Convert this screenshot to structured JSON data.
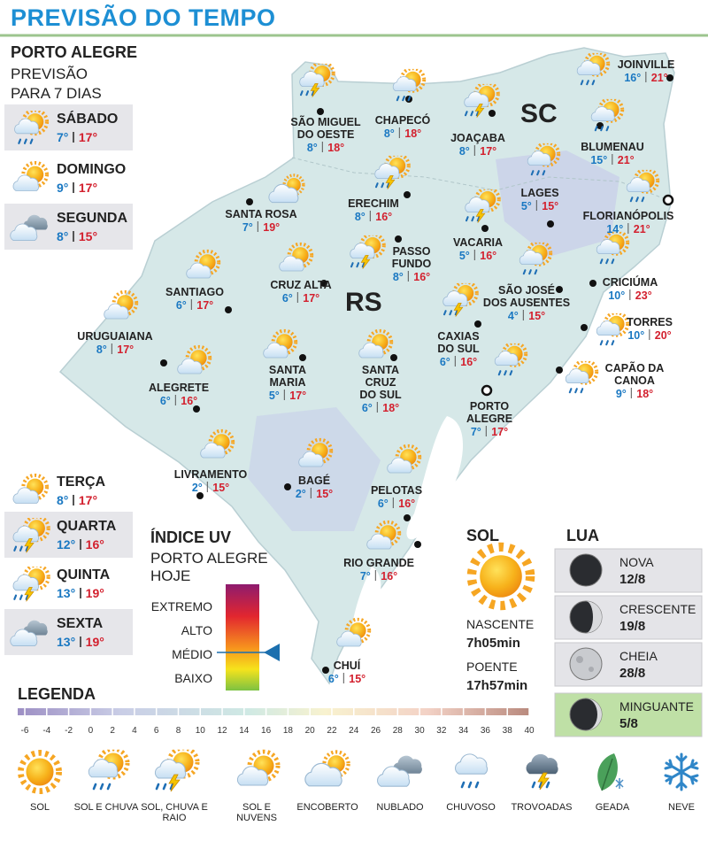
{
  "header": {
    "title": "PREVISÃO DO TEMPO"
  },
  "forecast": {
    "city": "PORTO ALEGRE",
    "subtitle": [
      "PREVISÃO",
      "PARA 7 DIAS"
    ],
    "days": [
      {
        "name": "SÁBADO",
        "min": "7°",
        "max": "17°"
      },
      {
        "name": "DOMINGO",
        "min": "9°",
        "max": "17°"
      },
      {
        "name": "SEGUNDA",
        "min": "8°",
        "max": "15°"
      },
      {
        "name": "TERÇA",
        "min": "8°",
        "max": "17°"
      },
      {
        "name": "QUARTA",
        "min": "12°",
        "max": "16°"
      },
      {
        "name": "QUINTA",
        "min": "13°",
        "max": "19°"
      },
      {
        "name": "SEXTA",
        "min": "13°",
        "max": "19°"
      }
    ]
  },
  "map": {
    "states": [
      "SC",
      "RS"
    ],
    "cities": [
      {
        "name": [
          "SÃO MIGUEL",
          "DO OESTE"
        ],
        "min": "8°",
        "max": "18°"
      },
      {
        "name": [
          "CHAPECÓ"
        ],
        "min": "8°",
        "max": "18°"
      },
      {
        "name": [
          "JOAÇABA"
        ],
        "min": "8°",
        "max": "17°"
      },
      {
        "name": [
          "JOINVILLE"
        ],
        "min": "16°",
        "max": "21°"
      },
      {
        "name": [
          "BLUMENAU"
        ],
        "min": "15°",
        "max": "21°"
      },
      {
        "name": [
          "LAGES"
        ],
        "min": "5°",
        "max": "15°"
      },
      {
        "name": [
          "FLORIANÓPOLIS"
        ],
        "min": "14°",
        "max": "21°"
      },
      {
        "name": [
          "SANTA ROSA"
        ],
        "min": "7°",
        "max": "19°"
      },
      {
        "name": [
          "ERECHIM"
        ],
        "min": "8°",
        "max": "16°"
      },
      {
        "name": [
          "VACARIA"
        ],
        "min": "5°",
        "max": "16°"
      },
      {
        "name": [
          "CRICIÚMA"
        ],
        "min": "10°",
        "max": "23°"
      },
      {
        "name": [
          "PASSO",
          "FUNDO"
        ],
        "min": "8°",
        "max": "16°"
      },
      {
        "name": [
          "SÃO JOSÉ",
          "DOS AUSENTES"
        ],
        "min": "4°",
        "max": "15°"
      },
      {
        "name": [
          "SANTIAGO"
        ],
        "min": "6°",
        "max": "17°"
      },
      {
        "name": [
          "CRUZ ALTA"
        ],
        "min": "6°",
        "max": "17°"
      },
      {
        "name": [
          "CAXIAS",
          "DO SUL"
        ],
        "min": "6°",
        "max": "16°"
      },
      {
        "name": [
          "TORRES"
        ],
        "min": "10°",
        "max": "20°"
      },
      {
        "name": [
          "URUGUAIANA"
        ],
        "min": "8°",
        "max": "17°"
      },
      {
        "name": [
          "SANTA",
          "MARIA"
        ],
        "min": "5°",
        "max": "17°"
      },
      {
        "name": [
          "SANTA",
          "CRUZ",
          "DO SUL"
        ],
        "min": "6°",
        "max": "18°"
      },
      {
        "name": [
          "ALEGRETE"
        ],
        "min": "6°",
        "max": "16°"
      },
      {
        "name": [
          "CAPÃO DA",
          "CANOA"
        ],
        "min": "9°",
        "max": "18°"
      },
      {
        "name": [
          "PORTO",
          "ALEGRE"
        ],
        "min": "7°",
        "max": "17°"
      },
      {
        "name": [
          "LIVRAMENTO"
        ],
        "min": "2°",
        "max": "15°"
      },
      {
        "name": [
          "BAGÉ"
        ],
        "min": "2°",
        "max": "15°"
      },
      {
        "name": [
          "PELOTAS"
        ],
        "min": "6°",
        "max": "16°"
      },
      {
        "name": [
          "RIO GRANDE"
        ],
        "min": "7°",
        "max": "16°"
      },
      {
        "name": [
          "CHUÍ"
        ],
        "min": "6°",
        "max": "15°"
      }
    ]
  },
  "uv": {
    "title": "ÍNDICE UV",
    "subtitle": [
      "PORTO ALEGRE",
      "HOJE"
    ],
    "levels": [
      "EXTREMO",
      "ALTO",
      "MÉDIO",
      "BAIXO"
    ]
  },
  "sun": {
    "title": "SOL",
    "sunrise_label": "NASCENTE",
    "sunrise": "7h05min",
    "sunset_label": "POENTE",
    "sunset": "17h57min"
  },
  "moon": {
    "title": "LUA",
    "phases": [
      {
        "name": "NOVA",
        "date": "12/8"
      },
      {
        "name": "CRESCENTE",
        "date": "19/8"
      },
      {
        "name": "CHEIA",
        "date": "28/8"
      },
      {
        "name": "MINGUANTE",
        "date": "5/8"
      }
    ]
  },
  "legend": {
    "title": "LEGENDA",
    "scale": [
      -6,
      -4,
      -2,
      0,
      2,
      4,
      6,
      8,
      10,
      12,
      14,
      16,
      18,
      20,
      22,
      24,
      26,
      28,
      30,
      32,
      34,
      36,
      38,
      40
    ],
    "icons": [
      "SOL",
      "SOL E CHUVA",
      "SOL, CHUVA E RAIO",
      "SOL E NUVENS",
      "ENCOBERTO",
      "NUBLADO",
      "CHUVOSO",
      "TROVOADAS",
      "GEADA",
      "NEVE"
    ]
  }
}
